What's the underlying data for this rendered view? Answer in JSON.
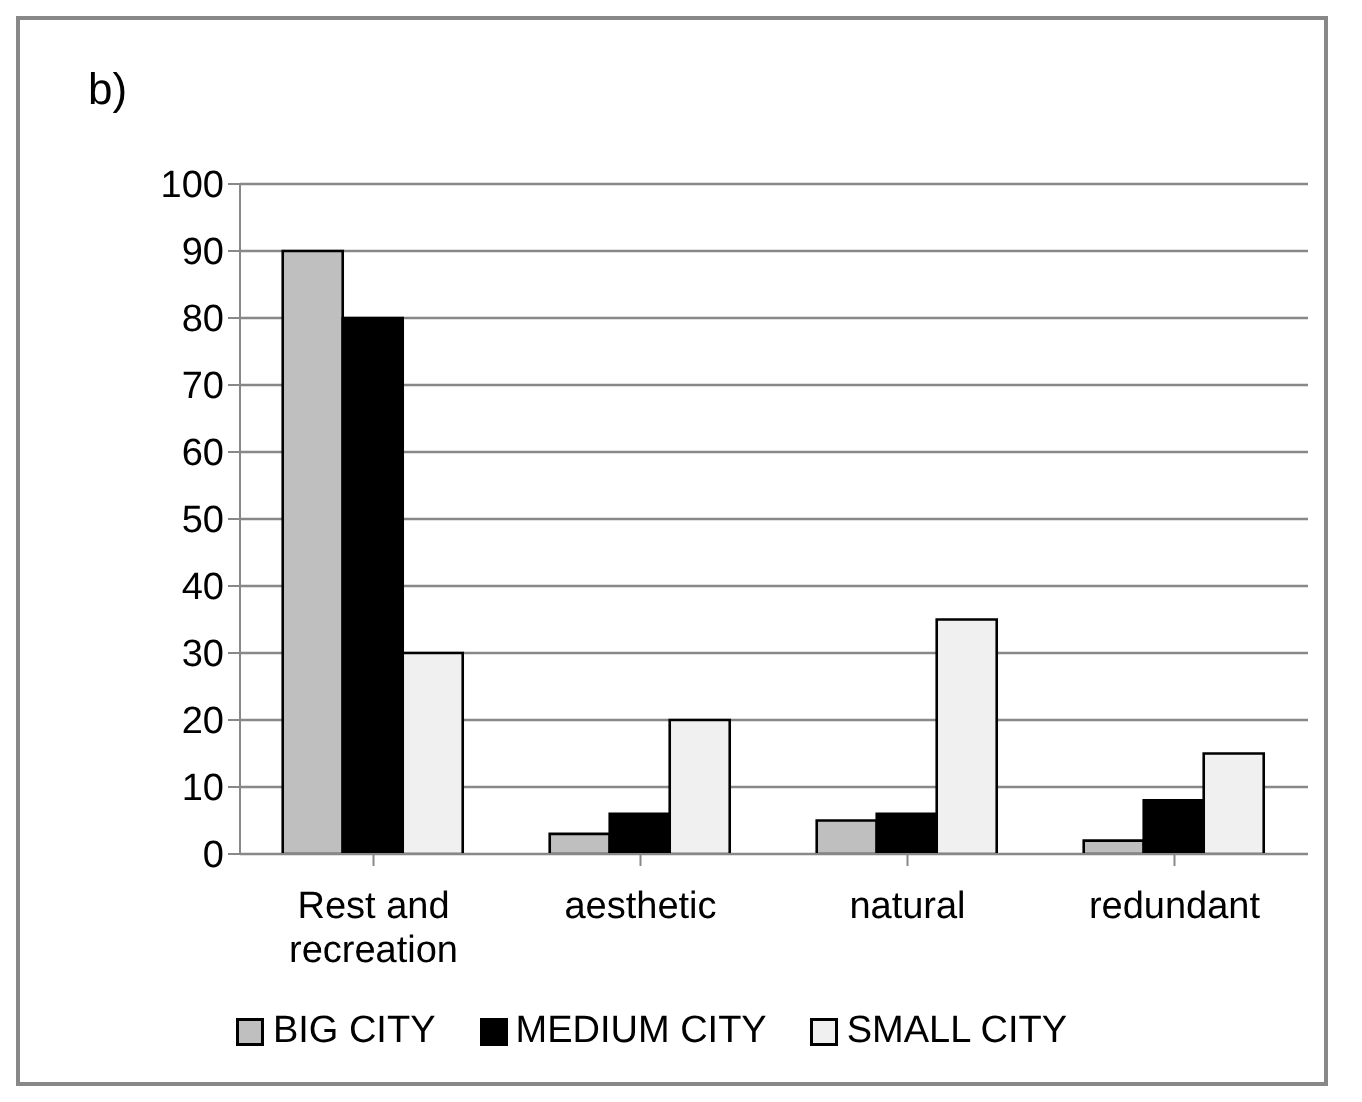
{
  "chart_data": {
    "type": "bar",
    "title": "b)",
    "categories": [
      "Rest and recreation",
      "aesthetic",
      "natural",
      "redundant"
    ],
    "series": [
      {
        "name": "BIG CITY",
        "color": "#bfbfbf",
        "values": [
          90,
          3,
          5,
          2
        ]
      },
      {
        "name": "MEDIUM CITY",
        "color": "#000000",
        "values": [
          80,
          6,
          6,
          8
        ]
      },
      {
        "name": "SMALL CITY",
        "color": "#f0f0f0",
        "values": [
          30,
          20,
          35,
          15
        ]
      }
    ],
    "ylim": [
      0,
      100
    ],
    "yticks": [
      0,
      10,
      20,
      30,
      40,
      50,
      60,
      70,
      80,
      90,
      100
    ],
    "grid": "y",
    "legend": "bottom"
  }
}
